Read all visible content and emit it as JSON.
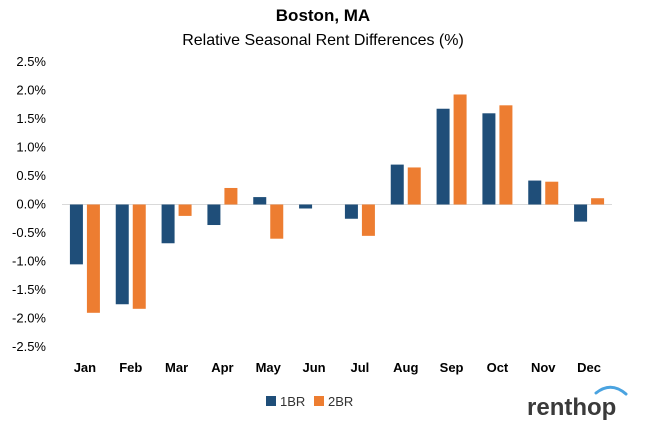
{
  "chart_data": {
    "type": "bar",
    "title": "Boston, MA",
    "subtitle": "Relative Seasonal Rent Differences (%)",
    "categories": [
      "Jan",
      "Feb",
      "Mar",
      "Apr",
      "May",
      "Jun",
      "Jul",
      "Aug",
      "Sep",
      "Oct",
      "Nov",
      "Dec"
    ],
    "series": [
      {
        "name": "1BR",
        "color": "#1f4e79",
        "values": [
          -1.05,
          -1.75,
          -0.68,
          -0.36,
          0.13,
          -0.07,
          -0.25,
          0.7,
          1.68,
          1.6,
          0.42,
          -0.3
        ]
      },
      {
        "name": "2BR",
        "color": "#ed7d31",
        "values": [
          -1.9,
          -1.83,
          -0.2,
          0.29,
          -0.6,
          0.0,
          -0.55,
          0.65,
          1.93,
          1.74,
          0.4,
          0.11
        ]
      }
    ],
    "ylim": [
      -2.5,
      2.5
    ],
    "yticks": [
      2.5,
      2.0,
      1.5,
      1.0,
      0.5,
      0.0,
      -0.5,
      -1.0,
      -1.5,
      -2.0,
      -2.5
    ],
    "ytick_labels": [
      "2.5%",
      "2.0%",
      "1.5%",
      "1.0%",
      "0.5%",
      "0.0%",
      "-0.5%",
      "-1.0%",
      "-1.5%",
      "-2.0%",
      "-2.5%"
    ],
    "legend_position": "bottom-center",
    "grid": false
  },
  "logo": {
    "text": "renthop"
  }
}
